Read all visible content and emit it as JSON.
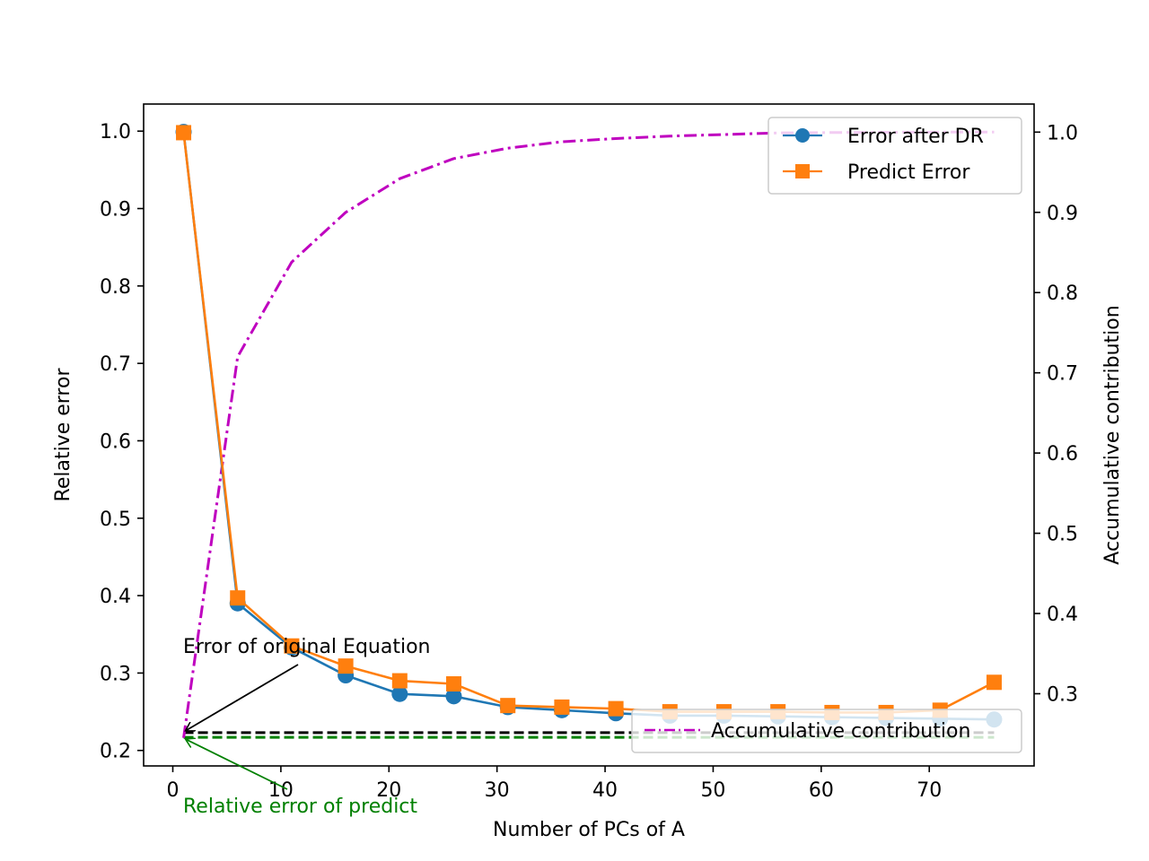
{
  "chart_data": {
    "type": "line",
    "xlabel": "Number of PCs of A",
    "ylabel_left": "Relative error",
    "ylabel_right": "Accumulative contribution",
    "x": [
      1,
      6,
      11,
      16,
      21,
      26,
      31,
      36,
      41,
      46,
      51,
      56,
      61,
      66,
      71,
      76
    ],
    "xlim": [
      -2.7,
      79.7
    ],
    "ylim_left": [
      0.18,
      1.035
    ],
    "ylim_right": [
      0.21,
      1.035
    ],
    "xticks": [
      0,
      10,
      20,
      30,
      40,
      50,
      60,
      70
    ],
    "yticks_left": [
      "1.0",
      "0.9",
      "0.8",
      "0.7",
      "0.6",
      "0.5",
      "0.4",
      "0.3",
      "0.2"
    ],
    "yticks_right": [
      "1.0",
      "0.9",
      "0.8",
      "0.7",
      "0.6",
      "0.5",
      "0.4",
      "0.3"
    ],
    "series_left": [
      {
        "name": "Error after DR",
        "color": "#1f77b4",
        "marker": "circle",
        "values": [
          0.999,
          0.39,
          0.333,
          0.297,
          0.273,
          0.27,
          0.256,
          0.252,
          0.248,
          0.245,
          0.245,
          0.244,
          0.243,
          0.242,
          0.241,
          0.24
        ]
      },
      {
        "name": "Predict Error",
        "color": "#ff7f0e",
        "marker": "square",
        "values": [
          0.998,
          0.397,
          0.335,
          0.309,
          0.29,
          0.286,
          0.258,
          0.256,
          0.254,
          0.25,
          0.25,
          0.25,
          0.249,
          0.249,
          0.252,
          0.288
        ]
      }
    ],
    "series_right": [
      {
        "name": "Accumulative contribution",
        "color": "#bf00bf",
        "linestyle": "dashdot",
        "values": [
          0.245,
          0.72,
          0.838,
          0.9,
          0.942,
          0.967,
          0.98,
          0.988,
          0.992,
          0.995,
          0.997,
          0.999,
          0.9995,
          0.9998,
          1.0,
          1.0
        ]
      }
    ],
    "reference_lines": [
      {
        "color": "#000000",
        "y": 0.223,
        "x_start": 1,
        "x_end": 76
      },
      {
        "color": "#008000",
        "y": 0.217,
        "x_start": 1,
        "x_end": 76
      }
    ],
    "annotations": [
      {
        "text": "Error of original Equation",
        "color": "#000000",
        "target": [
          1,
          0.223
        ]
      },
      {
        "text": "Relative error of predict",
        "color": "#008000",
        "target": [
          1,
          0.217
        ]
      }
    ],
    "legend_upper": {
      "placement": "upper-right",
      "entries": [
        "Error after DR",
        "Predict Error"
      ]
    },
    "legend_lower": {
      "placement": "lower-right",
      "entries": [
        "Accumulative contribution"
      ]
    },
    "grid": false
  }
}
